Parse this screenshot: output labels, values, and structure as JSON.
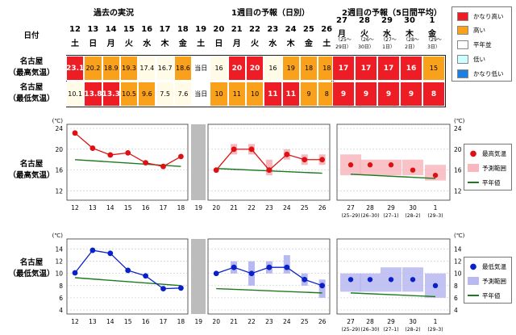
{
  "header": {
    "label_date": "日付",
    "section_past": "過去の実況",
    "section_week1": "1週目の予報（日別）",
    "section_week2": "2週目の予報（5日間平均）"
  },
  "days": [
    {
      "d": "12",
      "w": "土"
    },
    {
      "d": "13",
      "w": "日"
    },
    {
      "d": "14",
      "w": "月"
    },
    {
      "d": "15",
      "w": "火"
    },
    {
      "d": "16",
      "w": "水"
    },
    {
      "d": "17",
      "w": "木"
    },
    {
      "d": "18",
      "w": "金"
    },
    {
      "d": "19",
      "w": "土"
    },
    {
      "d": "20",
      "w": "日"
    },
    {
      "d": "21",
      "w": "月"
    },
    {
      "d": "22",
      "w": "火"
    },
    {
      "d": "23",
      "w": "水"
    },
    {
      "d": "24",
      "w": "木"
    },
    {
      "d": "25",
      "w": "金"
    },
    {
      "d": "26",
      "w": "土"
    }
  ],
  "week2": [
    {
      "d": "27",
      "w": "月",
      "r1": "（25〜",
      "r2": "29日）"
    },
    {
      "d": "28",
      "w": "火",
      "r1": "（26〜",
      "r2": "30日）"
    },
    {
      "d": "29",
      "w": "水",
      "r1": "（27〜",
      "r2": "1日）"
    },
    {
      "d": "30",
      "w": "木",
      "r1": "（28〜",
      "r2": "2日）"
    },
    {
      "d": "1",
      "w": "金",
      "r1": "（29〜",
      "r2": "3日）"
    }
  ],
  "rows": {
    "max_label_1": "名古屋",
    "max_label_2": "（最高気温）",
    "min_label_1": "名古屋",
    "min_label_2": "（最低気温）",
    "max_past": [
      "23.1",
      "20.2",
      "18.9",
      "19.3",
      "17.4",
      "16.7",
      "18.6"
    ],
    "min_past": [
      "10.1",
      "13.8",
      "13.3",
      "10.5",
      "9.6",
      "7.5",
      "7.6"
    ],
    "today_text": "当日",
    "max_fc": [
      "16",
      "20",
      "20",
      "16",
      "19",
      "18",
      "18"
    ],
    "min_fc": [
      "10",
      "11",
      "10",
      "11",
      "11",
      "9",
      "8"
    ],
    "max_w2": [
      "17",
      "17",
      "17",
      "16",
      "15"
    ],
    "min_w2": [
      "9",
      "9",
      "9",
      "9",
      "8"
    ]
  },
  "legend_table": {
    "very_high": "かなり高い",
    "high": "高い",
    "normal": "平年並",
    "low": "低い",
    "very_low": "かなり低い",
    "colors": {
      "very_high": "#ee1c25",
      "high": "#f9a11b",
      "normal": "#ffffff",
      "low": "#ccffff",
      "very_low": "#1e7fe0",
      "cream": "#fffbe6"
    }
  },
  "chart_data": [
    {
      "type": "line",
      "title": "最高気温",
      "unit": "(℃)",
      "row_label_1": "名古屋",
      "row_label_2": "（最高気温）",
      "yticks": [
        12,
        16,
        20,
        24
      ],
      "ylim": [
        11,
        24
      ],
      "categories": [
        "12",
        "13",
        "14",
        "15",
        "16",
        "17",
        "18",
        "19",
        "20",
        "21",
        "22",
        "23",
        "24",
        "25",
        "26"
      ],
      "series": [
        {
          "name": "最高気温",
          "observed": [
            23.1,
            20.2,
            18.9,
            19.3,
            17.4,
            16.7,
            18.6
          ],
          "forecast": [
            16,
            20,
            20,
            16,
            19,
            18,
            18
          ],
          "week2": [
            17,
            17,
            17,
            16,
            15
          ]
        },
        {
          "name": "予測範囲",
          "forecast_range": [
            [
              16,
              16
            ],
            [
              19,
              21
            ],
            [
              19,
              21
            ],
            [
              15,
              18
            ],
            [
              18,
              20
            ],
            [
              17,
              19
            ],
            [
              17,
              19
            ]
          ],
          "week2_range": [
            [
              15,
              19
            ],
            [
              15,
              18
            ],
            [
              15,
              18
            ],
            [
              15,
              18
            ],
            [
              14,
              17
            ]
          ]
        },
        {
          "name": "平年値",
          "normal_past": [
            18.0,
            16.7
          ],
          "normal_fc": [
            16.3,
            15.4
          ],
          "normal_w2": [
            15.2,
            14.4
          ]
        }
      ],
      "week2_labels": [
        "27",
        "28",
        "29",
        "30",
        "1"
      ],
      "week2_sub": [
        "(25–29)",
        "(26–30)",
        "(27–1)",
        "(28–2)",
        "(29–3)"
      ]
    },
    {
      "type": "line",
      "title": "最低気温",
      "unit": "(℃)",
      "row_label_1": "名古屋",
      "row_label_2": "（最低気温）",
      "yticks": [
        4,
        6,
        8,
        10,
        12,
        14
      ],
      "ylim": [
        4,
        15
      ],
      "categories": [
        "12",
        "13",
        "14",
        "15",
        "16",
        "17",
        "18",
        "19",
        "20",
        "21",
        "22",
        "23",
        "24",
        "25",
        "26"
      ],
      "series": [
        {
          "name": "最低気温",
          "observed": [
            10.1,
            13.8,
            13.3,
            10.5,
            9.6,
            7.5,
            7.6
          ],
          "forecast": [
            10,
            11,
            10,
            11,
            11,
            9,
            8
          ],
          "week2": [
            9,
            9,
            9,
            9,
            8
          ]
        },
        {
          "name": "予測範囲",
          "forecast_range": [
            [
              10,
              10
            ],
            [
              10,
              12
            ],
            [
              8,
              12
            ],
            [
              10,
              12
            ],
            [
              10,
              13
            ],
            [
              8,
              10
            ],
            [
              6,
              9
            ]
          ],
          "week2_range": [
            [
              7,
              10
            ],
            [
              7,
              10
            ],
            [
              7,
              11
            ],
            [
              7,
              11
            ],
            [
              6,
              10
            ]
          ]
        },
        {
          "name": "平年値",
          "normal_past": [
            9.3,
            8.0
          ],
          "normal_fc": [
            7.5,
            6.8
          ],
          "normal_w2": [
            6.8,
            6.2
          ]
        }
      ],
      "week2_labels": [
        "27",
        "28",
        "29",
        "30",
        "1"
      ],
      "week2_sub": [
        "(25–29)",
        "(26–30)",
        "(27–1)",
        "(28–2)",
        "(29–3)"
      ]
    }
  ],
  "legend_chart": {
    "label_obs_max": "最高気温",
    "label_obs_min": "最低気温",
    "label_range": "予測範囲",
    "label_normal": "平年値",
    "color_max": "#dd1111",
    "color_min": "#0b21c8",
    "color_range_max": "#f7b7bd",
    "color_range_min": "#b7b9f0",
    "color_normal": "#1e7a1e",
    "today_gray": "#bcbcbc"
  }
}
